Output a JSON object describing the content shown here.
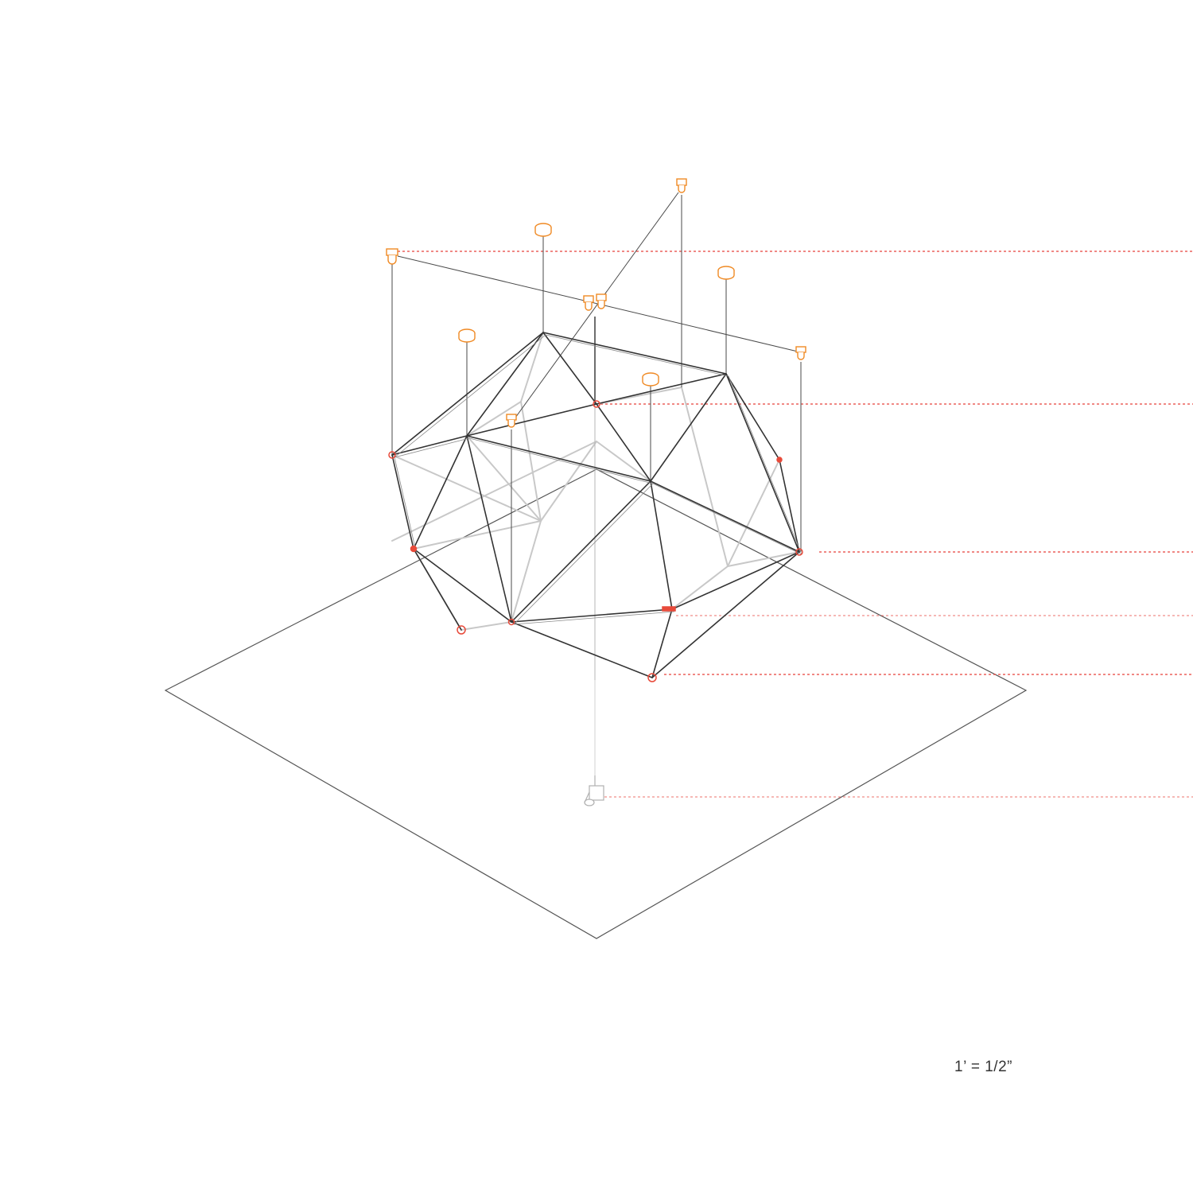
{
  "scale_label": "1’ = 1/2”",
  "colors": {
    "background": "#ffffff",
    "frame": "#333333",
    "frame_back": "#c8c8c8",
    "ground": "#555555",
    "rigging": "#4a4a4a",
    "hardware": "#f08a24",
    "joint": "#e84a3a",
    "guide": "#e8423a"
  },
  "icons": [
    "orange-clamp-icon",
    "orange-disc-icon",
    "red-joint-icon",
    "camera-clamp-icon"
  ]
}
